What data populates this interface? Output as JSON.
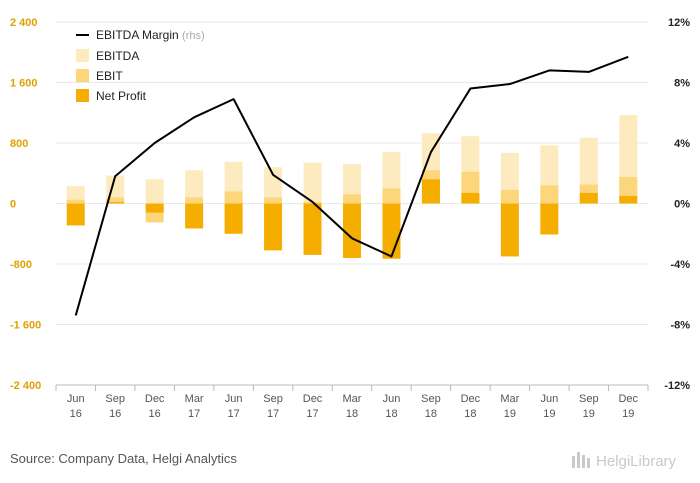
{
  "chart_data": {
    "type": "bar",
    "categories": [
      [
        "Jun",
        "16"
      ],
      [
        "Sep",
        "16"
      ],
      [
        "Dec",
        "16"
      ],
      [
        "Mar",
        "17"
      ],
      [
        "Jun",
        "17"
      ],
      [
        "Sep",
        "17"
      ],
      [
        "Dec",
        "17"
      ],
      [
        "Mar",
        "18"
      ],
      [
        "Jun",
        "18"
      ],
      [
        "Sep",
        "18"
      ],
      [
        "Dec",
        "18"
      ],
      [
        "Mar",
        "19"
      ],
      [
        "Jun",
        "19"
      ],
      [
        "Sep",
        "19"
      ],
      [
        "Dec",
        "19"
      ]
    ],
    "series": [
      {
        "name": "EBITDA",
        "type": "bar",
        "color": "#fdebbf",
        "values": [
          230,
          370,
          320,
          440,
          550,
          480,
          540,
          520,
          680,
          930,
          890,
          670,
          770,
          870,
          1170
        ]
      },
      {
        "name": "EBIT",
        "type": "bar",
        "color": "#fdd57a",
        "values": [
          50,
          80,
          -250,
          80,
          160,
          80,
          20,
          120,
          200,
          440,
          420,
          180,
          240,
          250,
          350
        ]
      },
      {
        "name": "Net Profit",
        "type": "bar",
        "color": "#f5ad00",
        "values": [
          -290,
          20,
          -120,
          -330,
          -400,
          -620,
          -680,
          -720,
          -730,
          320,
          140,
          -700,
          -410,
          140,
          100
        ]
      },
      {
        "name": "EBITDA Margin",
        "name_suffix": "(rhs)",
        "type": "line",
        "axis": "right",
        "color": "#000000",
        "values": [
          -7.4,
          1.8,
          4.0,
          5.7,
          6.9,
          1.9,
          0.1,
          -2.3,
          -3.5,
          3.4,
          7.6,
          7.9,
          8.8,
          8.7,
          9.7
        ]
      }
    ],
    "y_left": {
      "ticks": [
        "2 400",
        "1 600",
        "800",
        "0",
        "-800",
        "-1 600",
        "-2 400"
      ],
      "min": -2400,
      "max": 2400
    },
    "y_right": {
      "ticks": [
        "12%",
        "8%",
        "4%",
        "0%",
        "-4%",
        "-8%",
        "-12%"
      ],
      "min": -12,
      "max": 12
    },
    "legend_position": "top-left",
    "grid": true
  },
  "footer": {
    "source": "Source: Company Data, Helgi Analytics",
    "logo_name": "HelgiLibrary"
  }
}
